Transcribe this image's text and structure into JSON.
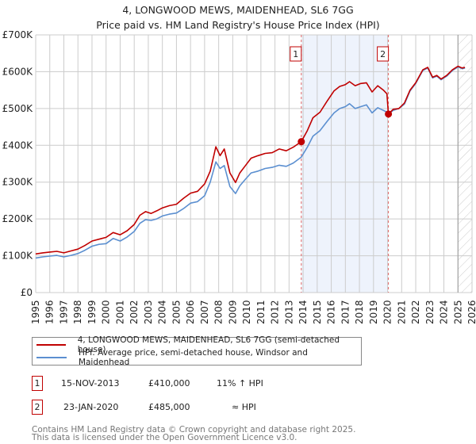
{
  "title": "4, LONGWOOD MEWS, MAIDENHEAD, SL6 7GG",
  "subtitle": "Price paid vs. HM Land Registry's House Price Index (HPI)",
  "colors": {
    "property": "#c00000",
    "hpi": "#5b8fd0",
    "shade": "#eef3fc",
    "grid": "#cccccc",
    "marker_line": "#e06666"
  },
  "legend": {
    "property_label": "4, LONGWOOD MEWS, MAIDENHEAD, SL6 7GG (semi-detached house)",
    "hpi_label": "HPI: Average price, semi-detached house, Windsor and Maidenhead"
  },
  "transactions": [
    {
      "id": "1",
      "date": "15-NOV-2013",
      "price": "£410,000",
      "hpi": "11% ↑ HPI"
    },
    {
      "id": "2",
      "date": "23-JAN-2020",
      "price": "£485,000",
      "hpi": "≈ HPI"
    }
  ],
  "footer": {
    "line1": "Contains HM Land Registry data © Crown copyright and database right 2025.",
    "line2": "This data is licensed under the Open Government Licence v3.0."
  },
  "chart_data": {
    "type": "line",
    "title": "4, LONGWOOD MEWS, MAIDENHEAD, SL6 7GG",
    "subtitle": "Price paid vs. HM Land Registry's House Price Index (HPI)",
    "xlabel": "",
    "ylabel": "",
    "xlim": [
      1995,
      2026
    ],
    "ylim": [
      0,
      700000
    ],
    "grid": true,
    "legend_position": "bottom",
    "x_ticks": [
      "1995",
      "1996",
      "1997",
      "1998",
      "1999",
      "2000",
      "2001",
      "2002",
      "2003",
      "2004",
      "2005",
      "2006",
      "2007",
      "2008",
      "2009",
      "2010",
      "2011",
      "2012",
      "2013",
      "2014",
      "2015",
      "2016",
      "2017",
      "2018",
      "2019",
      "2020",
      "2021",
      "2022",
      "2023",
      "2024",
      "2025",
      "2026"
    ],
    "y_ticks": [
      {
        "value": 0,
        "label": "£0"
      },
      {
        "value": 100000,
        "label": "£100K"
      },
      {
        "value": 200000,
        "label": "£200K"
      },
      {
        "value": 300000,
        "label": "£300K"
      },
      {
        "value": 400000,
        "label": "£400K"
      },
      {
        "value": 500000,
        "label": "£500K"
      },
      {
        "value": 600000,
        "label": "£600K"
      },
      {
        "value": 700000,
        "label": "£700K"
      }
    ],
    "shaded_range": [
      2013.87,
      2020.06
    ],
    "hatched_from": 2025.0,
    "markers": [
      {
        "label": "1",
        "x": 2013.87,
        "y": 410000
      },
      {
        "label": "2",
        "x": 2020.06,
        "y": 485000
      }
    ],
    "series": [
      {
        "name": "4, LONGWOOD MEWS, MAIDENHEAD, SL6 7GG (semi-detached house)",
        "x": [
          1995.0,
          1995.5,
          1996.0,
          1996.5,
          1997.0,
          1997.5,
          1998.0,
          1998.5,
          1999.0,
          1999.5,
          2000.0,
          2000.5,
          2001.0,
          2001.5,
          2002.0,
          2002.4,
          2002.8,
          2003.2,
          2003.6,
          2004.0,
          2004.5,
          2005.0,
          2005.5,
          2006.0,
          2006.5,
          2007.0,
          2007.4,
          2007.8,
          2008.1,
          2008.4,
          2008.8,
          2009.2,
          2009.5,
          2009.9,
          2010.3,
          2010.8,
          2011.3,
          2011.8,
          2012.3,
          2012.8,
          2013.3,
          2013.87,
          2014.3,
          2014.7,
          2015.2,
          2015.7,
          2016.2,
          2016.6,
          2017.0,
          2017.3,
          2017.7,
          2018.1,
          2018.5,
          2018.9,
          2019.3,
          2019.7,
          2019.95,
          2020.06,
          2020.4,
          2020.8,
          2021.2,
          2021.6,
          2022.0,
          2022.5,
          2022.85,
          2023.2,
          2023.5,
          2023.8,
          2024.2,
          2024.6,
          2025.0,
          2025.3,
          2025.5
        ],
        "y": [
          105000,
          108000,
          110000,
          112000,
          108000,
          113000,
          118000,
          128000,
          140000,
          145000,
          150000,
          163000,
          157000,
          168000,
          185000,
          210000,
          220000,
          215000,
          222000,
          230000,
          236000,
          240000,
          256000,
          270000,
          275000,
          295000,
          330000,
          396000,
          372000,
          390000,
          325000,
          299000,
          325000,
          345000,
          365000,
          372000,
          378000,
          380000,
          390000,
          385000,
          395000,
          410000,
          440000,
          475000,
          490000,
          520000,
          548000,
          560000,
          565000,
          573000,
          562000,
          568000,
          570000,
          545000,
          562000,
          550000,
          540000,
          485000,
          498000,
          500000,
          515000,
          550000,
          570000,
          605000,
          612000,
          585000,
          590000,
          580000,
          590000,
          605000,
          615000,
          610000,
          612000
        ]
      },
      {
        "name": "HPI: Average price, semi-detached house, Windsor and Maidenhead",
        "x": [
          1995.0,
          1995.5,
          1996.0,
          1996.5,
          1997.0,
          1997.5,
          1998.0,
          1998.5,
          1999.0,
          1999.5,
          2000.0,
          2000.5,
          2001.0,
          2001.5,
          2002.0,
          2002.4,
          2002.8,
          2003.2,
          2003.6,
          2004.0,
          2004.5,
          2005.0,
          2005.5,
          2006.0,
          2006.5,
          2007.0,
          2007.4,
          2007.8,
          2008.1,
          2008.4,
          2008.8,
          2009.2,
          2009.5,
          2009.9,
          2010.3,
          2010.8,
          2011.3,
          2011.8,
          2012.3,
          2012.8,
          2013.3,
          2013.87,
          2014.3,
          2014.7,
          2015.2,
          2015.7,
          2016.2,
          2016.6,
          2017.0,
          2017.3,
          2017.7,
          2018.1,
          2018.5,
          2018.9,
          2019.3,
          2019.7,
          2019.95,
          2020.06,
          2020.4,
          2020.8,
          2021.2,
          2021.6,
          2022.0,
          2022.5,
          2022.85,
          2023.2,
          2023.5,
          2023.8,
          2024.2,
          2024.6,
          2025.0,
          2025.3,
          2025.5
        ],
        "y": [
          94000,
          97000,
          99000,
          101000,
          97000,
          101000,
          106000,
          115000,
          126000,
          131000,
          133000,
          147000,
          140000,
          151000,
          166000,
          188000,
          198000,
          196000,
          200000,
          208000,
          213000,
          216000,
          228000,
          243000,
          247000,
          263000,
          300000,
          355000,
          337000,
          345000,
          288000,
          269000,
          290000,
          308000,
          325000,
          330000,
          337000,
          340000,
          346000,
          343000,
          352000,
          368000,
          395000,
          425000,
          440000,
          465000,
          488000,
          500000,
          505000,
          513000,
          500000,
          505000,
          510000,
          488000,
          502000,
          495000,
          490000,
          485000,
          495000,
          500000,
          512000,
          548000,
          568000,
          603000,
          610000,
          583000,
          588000,
          578000,
          588000,
          603000,
          613000,
          608000,
          610000
        ]
      }
    ]
  }
}
